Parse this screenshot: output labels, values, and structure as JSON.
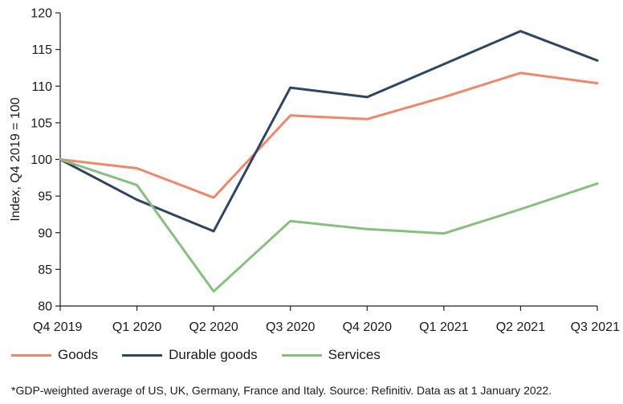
{
  "chart_data": {
    "type": "line",
    "title": "",
    "xlabel": "",
    "ylabel": "Index, Q4 2019 = 100",
    "ylim": [
      80,
      120
    ],
    "yticks": [
      80,
      85,
      90,
      95,
      100,
      105,
      110,
      115,
      120
    ],
    "grid": false,
    "legend_position": "bottom",
    "categories": [
      "Q4 2019",
      "Q1 2020",
      "Q2 2020",
      "Q3 2020",
      "Q4 2020",
      "Q1 2021",
      "Q2 2021",
      "Q3 2021"
    ],
    "series": [
      {
        "name": "Goods",
        "color": "#f0866a",
        "values": [
          100,
          98.8,
          94.8,
          106.0,
          105.5,
          108.5,
          111.8,
          110.4
        ]
      },
      {
        "name": "Durable goods",
        "color": "#2e4566",
        "values": [
          100,
          94.5,
          90.2,
          109.8,
          108.5,
          113.0,
          117.5,
          113.5
        ]
      },
      {
        "name": "Services",
        "color": "#86bf7e",
        "values": [
          100,
          96.5,
          82.0,
          91.6,
          90.5,
          89.9,
          93.2,
          96.7
        ]
      }
    ]
  },
  "footnote": "*GDP-weighted average of US, UK, Germany, France and Italy. Source: Refinitiv. Data as at 1 January 2022."
}
